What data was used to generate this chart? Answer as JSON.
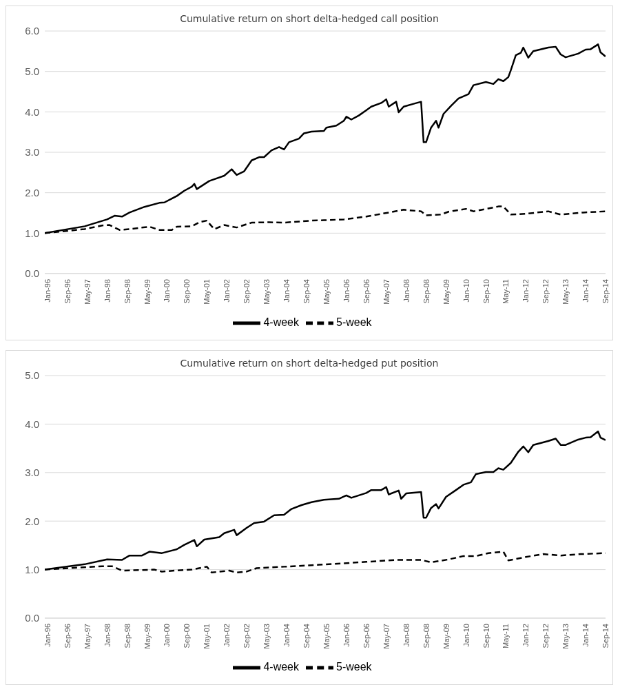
{
  "chart_data": [
    {
      "type": "line",
      "title": "Cumulative return on short delta-hedged call position",
      "marker": "none",
      "grid": "y",
      "legend": "bottom",
      "xlim": [
        "1996-01",
        "2014-10"
      ],
      "xticks": [
        {
          "value": "1996-01",
          "label": "Jan-96"
        },
        {
          "value": "1996-09",
          "label": "Sep-96"
        },
        {
          "value": "1997-05",
          "label": "May-97"
        },
        {
          "value": "1998-01",
          "label": "Jan-98"
        },
        {
          "value": "1998-09",
          "label": "Sep-98"
        },
        {
          "value": "1999-05",
          "label": "May-99"
        },
        {
          "value": "2000-01",
          "label": "Jan-00"
        },
        {
          "value": "2000-09",
          "label": "Sep-00"
        },
        {
          "value": "2001-05",
          "label": "May-01"
        },
        {
          "value": "2002-01",
          "label": "Jan-02"
        },
        {
          "value": "2002-09",
          "label": "Sep-02"
        },
        {
          "value": "2003-05",
          "label": "May-03"
        },
        {
          "value": "2004-01",
          "label": "Jan-04"
        },
        {
          "value": "2004-09",
          "label": "Sep-04"
        },
        {
          "value": "2005-05",
          "label": "May-05"
        },
        {
          "value": "2006-01",
          "label": "Jan-06"
        },
        {
          "value": "2006-09",
          "label": "Sep-06"
        },
        {
          "value": "2007-05",
          "label": "May-07"
        },
        {
          "value": "2008-01",
          "label": "Jan-08"
        },
        {
          "value": "2008-09",
          "label": "Sep-08"
        },
        {
          "value": "2009-05",
          "label": "May-09"
        },
        {
          "value": "2010-01",
          "label": "Jan-10"
        },
        {
          "value": "2010-09",
          "label": "Sep-10"
        },
        {
          "value": "2011-05",
          "label": "May-11"
        },
        {
          "value": "2012-01",
          "label": "Jan-12"
        },
        {
          "value": "2012-09",
          "label": "Sep-12"
        },
        {
          "value": "2013-05",
          "label": "May-13"
        },
        {
          "value": "2014-01",
          "label": "Jan-14"
        },
        {
          "value": "2014-09",
          "label": "Sep-14"
        }
      ],
      "ylim": [
        0,
        6
      ],
      "yticks": [
        {
          "value": 0,
          "label": "0.0"
        },
        {
          "value": 1,
          "label": "1.0"
        },
        {
          "value": 2,
          "label": "2.0"
        },
        {
          "value": 3,
          "label": "3.0"
        },
        {
          "value": 4,
          "label": "4.0"
        },
        {
          "value": 5,
          "label": "5.0"
        },
        {
          "value": 6,
          "label": "6.0"
        }
      ],
      "series": [
        {
          "name": "4-week",
          "color": "#000000",
          "line_style": "solid",
          "x": [
            "1996-01",
            "1997-05",
            "1998-02",
            "1998-05",
            "1998-08",
            "1998-11",
            "1999-05",
            "1999-11",
            "2000-01",
            "2000-06",
            "2000-09",
            "2000-12",
            "2001-01",
            "2001-02",
            "2001-07",
            "2002-01",
            "2002-04",
            "2002-06",
            "2002-09",
            "2002-12",
            "2003-03",
            "2003-05",
            "2003-08",
            "2003-11",
            "2004-01",
            "2004-03",
            "2004-07",
            "2004-09",
            "2004-12",
            "2005-05",
            "2005-06",
            "2005-10",
            "2006-01",
            "2006-02",
            "2006-04",
            "2006-07",
            "2006-10",
            "2006-12",
            "2007-04",
            "2007-06",
            "2007-07",
            "2007-10",
            "2007-11",
            "2008-01",
            "2008-05",
            "2008-08",
            "2008-09",
            "2008-10",
            "2008-12",
            "2009-02",
            "2009-03",
            "2009-05",
            "2009-08",
            "2009-11",
            "2010-03",
            "2010-05",
            "2010-10",
            "2011-01",
            "2011-03",
            "2011-05",
            "2011-07",
            "2011-08",
            "2011-10",
            "2011-12",
            "2012-01",
            "2012-03",
            "2012-05",
            "2012-11",
            "2013-02",
            "2013-04",
            "2013-06",
            "2013-11",
            "2014-02",
            "2014-04",
            "2014-07",
            "2014-08",
            "2014-10"
          ],
          "values": [
            1.0,
            1.17,
            1.34,
            1.43,
            1.41,
            1.51,
            1.65,
            1.75,
            1.76,
            1.92,
            2.05,
            2.15,
            2.22,
            2.09,
            2.29,
            2.42,
            2.58,
            2.44,
            2.53,
            2.8,
            2.88,
            2.88,
            3.05,
            3.13,
            3.07,
            3.25,
            3.34,
            3.47,
            3.51,
            3.53,
            3.61,
            3.66,
            3.78,
            3.88,
            3.81,
            3.91,
            4.04,
            4.13,
            4.22,
            4.31,
            4.13,
            4.25,
            3.99,
            4.13,
            4.2,
            4.25,
            3.25,
            3.25,
            3.61,
            3.78,
            3.61,
            3.95,
            4.15,
            4.33,
            4.44,
            4.66,
            4.74,
            4.69,
            4.81,
            4.76,
            4.86,
            5.03,
            5.4,
            5.46,
            5.59,
            5.34,
            5.5,
            5.59,
            5.61,
            5.42,
            5.35,
            5.44,
            5.54,
            5.55,
            5.67,
            5.47,
            5.37
          ]
        },
        {
          "name": "5-week",
          "color": "#000000",
          "line_style": "dashed",
          "x": [
            "1996-01",
            "1997-05",
            "1997-12",
            "1998-03",
            "1998-07",
            "1998-11",
            "1999-07",
            "1999-11",
            "2000-04",
            "2000-06",
            "2000-12",
            "2001-03",
            "2001-06",
            "2001-09",
            "2002-01",
            "2002-06",
            "2002-12",
            "2003-07",
            "2004-01",
            "2004-12",
            "2005-05",
            "2006-01",
            "2006-10",
            "2007-07",
            "2008-01",
            "2008-08",
            "2008-10",
            "2009-04",
            "2009-07",
            "2010-02",
            "2010-05",
            "2010-11",
            "2011-03",
            "2011-05",
            "2011-08",
            "2012-02",
            "2012-11",
            "2013-04",
            "2014-01",
            "2014-10"
          ],
          "values": [
            1.0,
            1.1,
            1.19,
            1.2,
            1.08,
            1.1,
            1.16,
            1.08,
            1.08,
            1.16,
            1.17,
            1.27,
            1.31,
            1.1,
            1.2,
            1.14,
            1.26,
            1.27,
            1.26,
            1.31,
            1.32,
            1.34,
            1.41,
            1.51,
            1.58,
            1.54,
            1.44,
            1.46,
            1.53,
            1.6,
            1.54,
            1.61,
            1.66,
            1.66,
            1.46,
            1.48,
            1.54,
            1.46,
            1.51,
            1.54
          ]
        }
      ]
    },
    {
      "type": "line",
      "title": "Cumulative return on short delta-hedged put position",
      "marker": "none",
      "grid": "y",
      "legend": "bottom",
      "xlim": [
        "1996-01",
        "2014-10"
      ],
      "xticks": [
        {
          "value": "1996-01",
          "label": "Jan-96"
        },
        {
          "value": "1996-09",
          "label": "Sep-96"
        },
        {
          "value": "1997-05",
          "label": "May-97"
        },
        {
          "value": "1998-01",
          "label": "Jan-98"
        },
        {
          "value": "1998-09",
          "label": "Sep-98"
        },
        {
          "value": "1999-05",
          "label": "May-99"
        },
        {
          "value": "2000-01",
          "label": "Jan-00"
        },
        {
          "value": "2000-09",
          "label": "Sep-00"
        },
        {
          "value": "2001-05",
          "label": "May-01"
        },
        {
          "value": "2002-01",
          "label": "Jan-02"
        },
        {
          "value": "2002-09",
          "label": "Sep-02"
        },
        {
          "value": "2003-05",
          "label": "May-03"
        },
        {
          "value": "2004-01",
          "label": "Jan-04"
        },
        {
          "value": "2004-09",
          "label": "Sep-04"
        },
        {
          "value": "2005-05",
          "label": "May-05"
        },
        {
          "value": "2006-01",
          "label": "Jan-06"
        },
        {
          "value": "2006-09",
          "label": "Sep-06"
        },
        {
          "value": "2007-05",
          "label": "May-07"
        },
        {
          "value": "2008-01",
          "label": "Jan-08"
        },
        {
          "value": "2008-09",
          "label": "Sep-08"
        },
        {
          "value": "2009-05",
          "label": "May-09"
        },
        {
          "value": "2010-01",
          "label": "Jan-10"
        },
        {
          "value": "2010-09",
          "label": "Sep-10"
        },
        {
          "value": "2011-05",
          "label": "May-11"
        },
        {
          "value": "2012-01",
          "label": "Jan-12"
        },
        {
          "value": "2012-09",
          "label": "Sep-12"
        },
        {
          "value": "2013-05",
          "label": "May-13"
        },
        {
          "value": "2014-01",
          "label": "Jan-14"
        },
        {
          "value": "2014-09",
          "label": "Sep-14"
        }
      ],
      "ylim": [
        0,
        5
      ],
      "yticks": [
        {
          "value": 0,
          "label": "0.0"
        },
        {
          "value": 1,
          "label": "1.0"
        },
        {
          "value": 2,
          "label": "2.0"
        },
        {
          "value": 3,
          "label": "3.0"
        },
        {
          "value": 4,
          "label": "4.0"
        },
        {
          "value": 5,
          "label": "5.0"
        }
      ],
      "series": [
        {
          "name": "4-week",
          "color": "#000000",
          "line_style": "solid",
          "x": [
            "1996-01",
            "1997-05",
            "1998-02",
            "1998-08",
            "1998-11",
            "1999-04",
            "1999-07",
            "1999-12",
            "2000-06",
            "2000-09",
            "2001-01",
            "2001-02",
            "2001-05",
            "2001-11",
            "2002-01",
            "2002-05",
            "2002-06",
            "2002-10",
            "2003-01",
            "2003-05",
            "2003-09",
            "2004-01",
            "2004-04",
            "2004-08",
            "2004-12",
            "2005-05",
            "2005-11",
            "2006-02",
            "2006-04",
            "2006-10",
            "2006-12",
            "2007-04",
            "2007-06",
            "2007-07",
            "2007-11",
            "2007-12",
            "2008-02",
            "2008-08",
            "2008-09",
            "2008-10",
            "2008-12",
            "2009-02",
            "2009-03",
            "2009-06",
            "2009-10",
            "2010-01",
            "2010-04",
            "2010-06",
            "2010-10",
            "2011-01",
            "2011-03",
            "2011-05",
            "2011-08",
            "2011-11",
            "2012-01",
            "2012-03",
            "2012-05",
            "2012-11",
            "2013-02",
            "2013-04",
            "2013-06",
            "2013-11",
            "2014-02",
            "2014-04",
            "2014-07",
            "2014-08",
            "2014-10"
          ],
          "values": [
            1.0,
            1.11,
            1.21,
            1.2,
            1.29,
            1.29,
            1.37,
            1.34,
            1.42,
            1.51,
            1.61,
            1.48,
            1.62,
            1.67,
            1.75,
            1.82,
            1.71,
            1.86,
            1.96,
            1.99,
            2.12,
            2.13,
            2.25,
            2.33,
            2.39,
            2.44,
            2.46,
            2.53,
            2.48,
            2.58,
            2.64,
            2.64,
            2.7,
            2.55,
            2.63,
            2.46,
            2.57,
            2.6,
            2.07,
            2.07,
            2.27,
            2.35,
            2.26,
            2.5,
            2.64,
            2.75,
            2.8,
            2.97,
            3.01,
            3.01,
            3.09,
            3.06,
            3.2,
            3.43,
            3.54,
            3.42,
            3.57,
            3.65,
            3.7,
            3.57,
            3.57,
            3.68,
            3.72,
            3.73,
            3.85,
            3.72,
            3.67
          ]
        },
        {
          "name": "5-week",
          "color": "#000000",
          "line_style": "dashed",
          "x": [
            "1996-01",
            "1997-12",
            "1998-04",
            "1998-08",
            "1999-09",
            "1999-12",
            "2000-05",
            "2000-12",
            "2001-06",
            "2001-08",
            "2002-03",
            "2002-06",
            "2002-10",
            "2003-02",
            "2004-01",
            "2004-12",
            "2005-03",
            "2006-01",
            "2006-10",
            "2007-10",
            "2008-08",
            "2008-12",
            "2009-07",
            "2010-01",
            "2010-06",
            "2010-11",
            "2011-05",
            "2011-07",
            "2012-02",
            "2012-09",
            "2013-04",
            "2013-12",
            "2014-10"
          ],
          "values": [
            1.0,
            1.07,
            1.07,
            0.98,
            1.0,
            0.96,
            0.98,
            1.0,
            1.06,
            0.94,
            0.98,
            0.94,
            0.96,
            1.03,
            1.06,
            1.09,
            1.1,
            1.13,
            1.16,
            1.2,
            1.2,
            1.15,
            1.21,
            1.28,
            1.28,
            1.34,
            1.37,
            1.19,
            1.26,
            1.32,
            1.29,
            1.32,
            1.34
          ]
        }
      ]
    }
  ]
}
